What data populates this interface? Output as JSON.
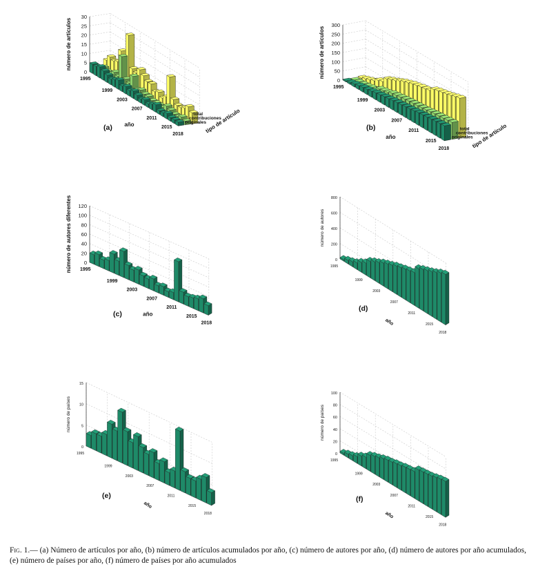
{
  "caption": {
    "fig_label": "Fig. 1.—",
    "text": "(a) Número de artículos por año, (b) número de artículos acumulados por año, (c) número de autores por año, (d) número de autores por año acumulados, (e) número de países por año, (f) número de países por año acumulados"
  },
  "colors": {
    "originales": "#1e8a68",
    "contribuciones": "#8cd06a",
    "total": "#ffff66"
  },
  "chart_data": [
    {
      "panel": "(a)",
      "type": "bar3d",
      "ylabel": "número de artículos",
      "xlabel": "año",
      "zlabel": "tipo de artículo",
      "year_ticks": [
        "1995",
        "1999",
        "2003",
        "2007",
        "2011",
        "2015",
        "2018"
      ],
      "z_ticks": [
        "0",
        "5",
        "10",
        "15",
        "20",
        "25",
        "30"
      ],
      "ylim": [
        0,
        30
      ],
      "categories": [
        "1995",
        "1996",
        "1997",
        "1998",
        "1999",
        "2000",
        "2001",
        "2002",
        "2003",
        "2004",
        "2005",
        "2006",
        "2007",
        "2008",
        "2009",
        "2010",
        "2011",
        "2012",
        "2013",
        "2014",
        "2015",
        "2016",
        "2017",
        "2018"
      ],
      "series": [
        {
          "name": "originales",
          "values": [
            5,
            5,
            6,
            5,
            4,
            3,
            4,
            5,
            3,
            4,
            3,
            4,
            3,
            2,
            3,
            2,
            3,
            4,
            2,
            2,
            3,
            2,
            2,
            2
          ]
        },
        {
          "name": "contribuciones",
          "values": [
            2,
            4,
            3,
            3,
            5,
            4,
            16,
            5,
            4,
            9,
            3,
            4,
            3,
            3,
            2,
            2,
            2,
            2,
            4,
            3,
            2,
            2,
            3,
            2
          ]
        },
        {
          "name": "total",
          "values": [
            6,
            9,
            8,
            9,
            16,
            8,
            27,
            10,
            9,
            12,
            10,
            8,
            8,
            5,
            6,
            4,
            6,
            18,
            7,
            5,
            5,
            6,
            8,
            6
          ]
        }
      ]
    },
    {
      "panel": "(b)",
      "type": "bar3d",
      "ylabel": "número de artículos",
      "xlabel": "año",
      "zlabel": "tipo de artículo",
      "year_ticks": [
        "1995",
        "1999",
        "2003",
        "2007",
        "2011",
        "2015",
        "2018"
      ],
      "z_ticks": [
        "0",
        "50",
        "100",
        "150",
        "200",
        "250",
        "300"
      ],
      "ylim": [
        0,
        300
      ],
      "categories": [
        "1995",
        "1996",
        "1997",
        "1998",
        "1999",
        "2000",
        "2001",
        "2002",
        "2003",
        "2004",
        "2005",
        "2006",
        "2007",
        "2008",
        "2009",
        "2010",
        "2011",
        "2012",
        "2013",
        "2014",
        "2015",
        "2016",
        "2017",
        "2018"
      ],
      "series": [
        {
          "name": "originales",
          "values": [
            5,
            10,
            16,
            21,
            25,
            28,
            32,
            37,
            40,
            44,
            47,
            51,
            54,
            56,
            59,
            61,
            64,
            68,
            70,
            72,
            75,
            77,
            79,
            81
          ]
        },
        {
          "name": "contribuciones",
          "values": [
            2,
            6,
            9,
            12,
            17,
            21,
            37,
            42,
            46,
            55,
            58,
            62,
            65,
            68,
            70,
            72,
            74,
            76,
            80,
            83,
            85,
            87,
            90,
            92
          ]
        },
        {
          "name": "total",
          "values": [
            6,
            15,
            23,
            32,
            48,
            56,
            83,
            93,
            102,
            114,
            124,
            132,
            140,
            145,
            151,
            155,
            161,
            179,
            186,
            191,
            196,
            202,
            210,
            216
          ]
        }
      ]
    },
    {
      "panel": "(c)",
      "type": "bar3d",
      "ylabel": "número de autores diferentes",
      "xlabel": "año",
      "year_ticks": [
        "1995",
        "1999",
        "2003",
        "2007",
        "2011",
        "2015",
        "2018"
      ],
      "z_ticks": [
        "0",
        "20",
        "40",
        "60",
        "80",
        "100",
        "120"
      ],
      "ylim": [
        0,
        120
      ],
      "categories": [
        "1995",
        "1996",
        "1997",
        "1998",
        "1999",
        "2000",
        "2001",
        "2002",
        "2003",
        "2004",
        "2005",
        "2006",
        "2007",
        "2008",
        "2009",
        "2010",
        "2011",
        "2012",
        "2013",
        "2014",
        "2015",
        "2016",
        "2017",
        "2018"
      ],
      "series": [
        {
          "name": "autores",
          "values": [
            20,
            25,
            18,
            22,
            40,
            30,
            55,
            30,
            25,
            30,
            22,
            20,
            25,
            15,
            18,
            12,
            15,
            85,
            25,
            20,
            22,
            25,
            30,
            20
          ]
        }
      ]
    },
    {
      "panel": "(d)",
      "type": "bar3d",
      "ylabel": "número de autores",
      "xlabel": "año",
      "year_ticks": [
        "1995",
        "1999",
        "2003",
        "2007",
        "2011",
        "2015",
        "2018"
      ],
      "z_ticks": [
        "0",
        "200",
        "400",
        "600",
        "800"
      ],
      "ylim": [
        0,
        800
      ],
      "categories": [
        "1995",
        "1996",
        "1997",
        "1998",
        "1999",
        "2000",
        "2001",
        "2002",
        "2003",
        "2004",
        "2005",
        "2006",
        "2007",
        "2008",
        "2009",
        "2010",
        "2011",
        "2012",
        "2013",
        "2014",
        "2015",
        "2016",
        "2017",
        "2018"
      ],
      "series": [
        {
          "name": "autores acumulados",
          "values": [
            20,
            45,
            63,
            85,
            125,
            155,
            210,
            240,
            265,
            295,
            317,
            337,
            362,
            377,
            395,
            407,
            422,
            507,
            532,
            552,
            574,
            599,
            629,
            649
          ]
        }
      ]
    },
    {
      "panel": "(e)",
      "type": "bar3d",
      "ylabel": "número de países",
      "xlabel": "año",
      "year_ticks": [
        "1995",
        "1999",
        "2003",
        "2007",
        "2011",
        "2015",
        "2018"
      ],
      "z_ticks": [
        "0",
        "5",
        "10",
        "15"
      ],
      "ylim": [
        0,
        15
      ],
      "categories": [
        "1995",
        "1996",
        "1997",
        "1998",
        "1999",
        "2000",
        "2001",
        "2002",
        "2003",
        "2004",
        "2005",
        "2006",
        "2007",
        "2008",
        "2009",
        "2010",
        "2011",
        "2012",
        "2013",
        "2014",
        "2015",
        "2016",
        "2017",
        "2018"
      ],
      "series": [
        {
          "name": "países",
          "values": [
            3,
            4,
            4,
            5,
            8,
            7,
            12,
            8,
            6,
            8,
            6,
            5,
            6,
            4,
            5,
            3,
            4,
            14,
            5,
            4,
            4,
            5,
            6,
            3
          ]
        }
      ]
    },
    {
      "panel": "(f)",
      "type": "bar3d",
      "ylabel": "número de países",
      "xlabel": "año",
      "year_ticks": [
        "1995",
        "1999",
        "2003",
        "2007",
        "2011",
        "2015",
        "2018"
      ],
      "z_ticks": [
        "0",
        "20",
        "40",
        "60",
        "80",
        "100"
      ],
      "ylim": [
        0,
        100
      ],
      "categories": [
        "1995",
        "1996",
        "1997",
        "1998",
        "1999",
        "2000",
        "2001",
        "2002",
        "2003",
        "2004",
        "2005",
        "2006",
        "2007",
        "2008",
        "2009",
        "2010",
        "2011",
        "2012",
        "2013",
        "2014",
        "2015",
        "2016",
        "2017",
        "2018"
      ],
      "series": [
        {
          "name": "países acumulados",
          "values": [
            3,
            6,
            8,
            11,
            16,
            19,
            26,
            29,
            31,
            34,
            36,
            37,
            39,
            40,
            42,
            43,
            44,
            51,
            52,
            53,
            54,
            56,
            58,
            59
          ]
        }
      ]
    }
  ]
}
